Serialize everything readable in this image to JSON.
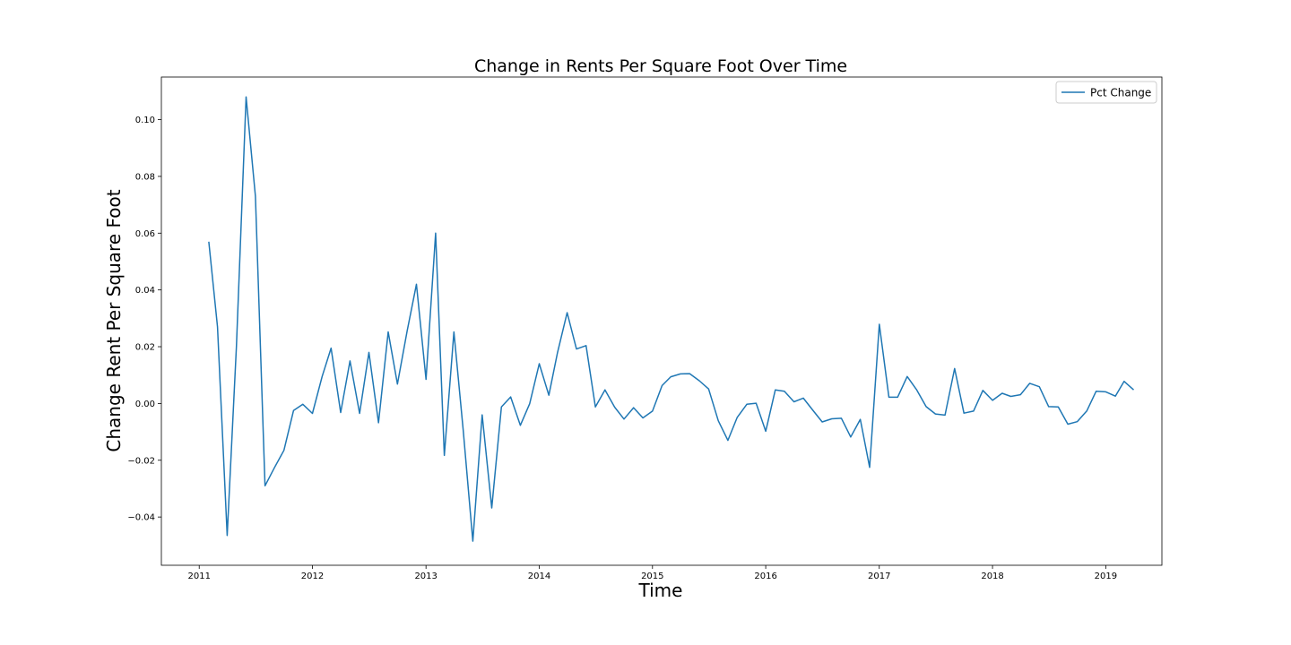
{
  "chart_data": {
    "type": "line",
    "title": "Change in Rents Per Square Foot Over Time",
    "xlabel": "Time",
    "ylabel": "Change Rent Per Square Foot",
    "xlim": [
      "2010-09-01",
      "2019-07-01"
    ],
    "ylim": [
      -0.057,
      0.115
    ],
    "x_ticks": [
      "2011",
      "2012",
      "2013",
      "2014",
      "2015",
      "2016",
      "2017",
      "2018",
      "2019"
    ],
    "y_ticks": [
      "−0.04",
      "−0.02",
      "0.00",
      "0.02",
      "0.04",
      "0.06",
      "0.08",
      "0.10"
    ],
    "y_tick_values": [
      -0.04,
      -0.02,
      0.0,
      0.02,
      0.04,
      0.06,
      0.08,
      0.1
    ],
    "grid": false,
    "legend": "top-right",
    "color": "#1f77b4",
    "series": [
      {
        "name": "Pct Change",
        "x": [
          "2011-02-01",
          "2011-03-01",
          "2011-04-01",
          "2011-05-01",
          "2011-06-01",
          "2011-07-01",
          "2011-08-01",
          "2011-09-01",
          "2011-10-01",
          "2011-11-01",
          "2011-12-01",
          "2012-01-01",
          "2012-02-01",
          "2012-03-01",
          "2012-04-01",
          "2012-05-01",
          "2012-06-01",
          "2012-07-01",
          "2012-08-01",
          "2012-09-01",
          "2012-10-01",
          "2012-11-01",
          "2012-12-01",
          "2013-01-01",
          "2013-02-01",
          "2013-03-01",
          "2013-04-01",
          "2013-05-01",
          "2013-06-01",
          "2013-07-01",
          "2013-08-01",
          "2013-09-01",
          "2013-10-01",
          "2013-11-01",
          "2013-12-01",
          "2014-01-01",
          "2014-02-01",
          "2014-03-01",
          "2014-04-01",
          "2014-05-01",
          "2014-06-01",
          "2014-07-01",
          "2014-08-01",
          "2014-09-01",
          "2014-10-01",
          "2014-11-01",
          "2014-12-01",
          "2015-01-01",
          "2015-02-01",
          "2015-03-01",
          "2015-04-01",
          "2015-05-01",
          "2015-06-01",
          "2015-07-01",
          "2015-08-01",
          "2015-09-01",
          "2015-10-01",
          "2015-11-01",
          "2015-12-01",
          "2016-01-01",
          "2016-02-01",
          "2016-03-01",
          "2016-04-01",
          "2016-05-01",
          "2016-06-01",
          "2016-07-01",
          "2016-08-01",
          "2016-09-01",
          "2016-10-01",
          "2016-11-01",
          "2016-12-01",
          "2017-01-01",
          "2017-02-01",
          "2017-03-01",
          "2017-04-01",
          "2017-05-01",
          "2017-06-01",
          "2017-07-01",
          "2017-08-01",
          "2017-09-01",
          "2017-10-01",
          "2017-11-01",
          "2017-12-01",
          "2018-01-01",
          "2018-02-01",
          "2018-03-01",
          "2018-04-01",
          "2018-05-01",
          "2018-06-01",
          "2018-07-01",
          "2018-08-01",
          "2018-09-01",
          "2018-10-01",
          "2018-11-01",
          "2018-12-01",
          "2019-01-01",
          "2019-02-01",
          "2019-03-01",
          "2019-04-01"
        ],
        "values": [
          0.057,
          0.027,
          -0.0465,
          0.02,
          0.108,
          0.073,
          -0.029,
          -0.0225,
          -0.0165,
          -0.0025,
          -0.0003,
          -0.0035,
          0.0095,
          0.0195,
          -0.0032,
          0.015,
          -0.0035,
          0.018,
          -0.0068,
          0.0252,
          0.0068,
          0.0255,
          0.042,
          0.0085,
          0.06,
          -0.0183,
          0.0252,
          -0.0095,
          -0.0485,
          -0.004,
          -0.0368,
          -0.0012,
          0.0023,
          -0.0077,
          -0.0001,
          0.014,
          0.0029,
          0.018,
          0.032,
          0.0192,
          0.0204,
          -0.0012,
          0.0048,
          -0.0013,
          -0.0055,
          -0.0015,
          -0.0051,
          -0.0027,
          0.0063,
          0.0094,
          0.0104,
          0.0105,
          0.008,
          0.0051,
          -0.0061,
          -0.013,
          -0.0049,
          -0.0003,
          0.0001,
          -0.0098,
          0.0048,
          0.0043,
          0.0006,
          0.0019,
          -0.0024,
          -0.0065,
          -0.0054,
          -0.0052,
          -0.0118,
          -0.0056,
          -0.0225,
          0.0279,
          0.0022,
          0.0022,
          0.0095,
          0.0049,
          -0.0011,
          -0.0037,
          -0.0041,
          0.0123,
          -0.0034,
          -0.0027,
          0.0046,
          0.0011,
          0.0036,
          0.0025,
          0.0031,
          0.0071,
          0.0059,
          -0.0011,
          -0.0012,
          -0.0073,
          -0.0064,
          -0.0026,
          0.0043,
          0.0041,
          0.0026,
          0.0078,
          0.0048
        ]
      }
    ]
  }
}
